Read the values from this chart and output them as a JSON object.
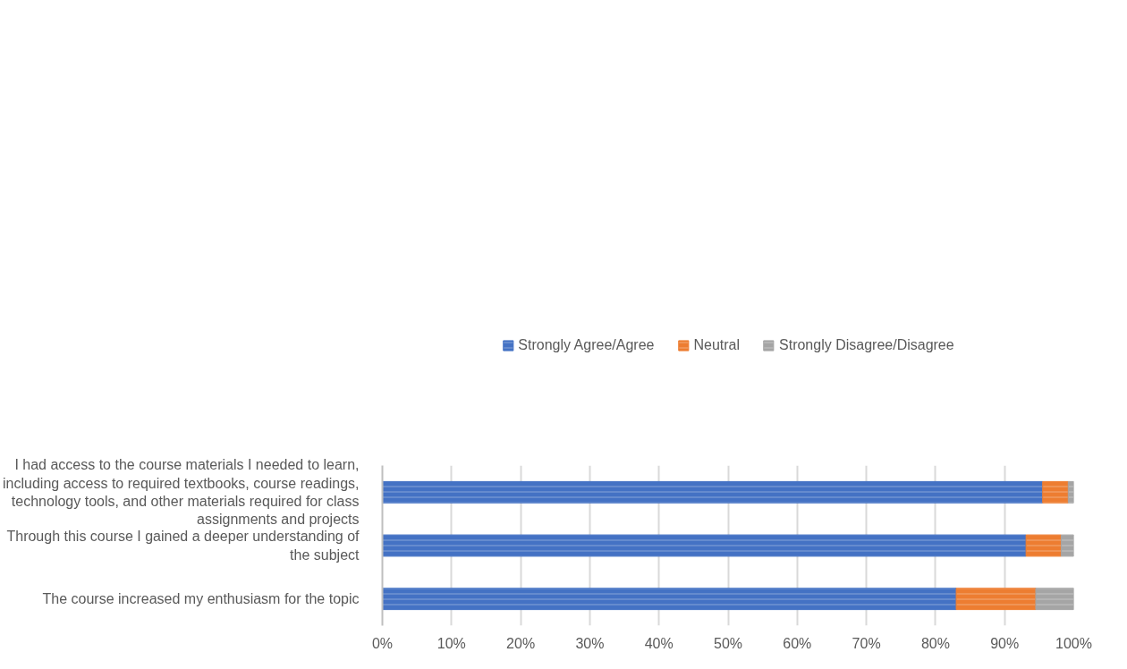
{
  "chart_data": {
    "type": "bar",
    "orientation": "horizontal",
    "stacked": true,
    "categories": [
      "I had access to the course materials I needed to learn, including access to required textbooks, course readings, technology tools, and other materials required for class assignments and projects",
      "Through this course I gained a deeper understanding of the subject",
      "The course increased my enthusiasm for the topic"
    ],
    "series": [
      {
        "name": "Strongly Agree/Agree",
        "color": "#4472c4",
        "values": [
          95.5,
          93.1,
          83.0
        ]
      },
      {
        "name": "Neutral",
        "color": "#ed7d31",
        "values": [
          3.7,
          5.1,
          11.5
        ]
      },
      {
        "name": "Strongly Disagree/Disagree",
        "color": "#a5a5a5",
        "values": [
          0.8,
          1.8,
          5.5
        ]
      }
    ],
    "xlim": [
      0,
      100
    ],
    "xticks": [
      {
        "value": 0,
        "label": "0%"
      },
      {
        "value": 10,
        "label": "10%"
      },
      {
        "value": 20,
        "label": "20%"
      },
      {
        "value": 30,
        "label": "30%"
      },
      {
        "value": 40,
        "label": "40%"
      },
      {
        "value": 50,
        "label": "50%"
      },
      {
        "value": 60,
        "label": "60%"
      },
      {
        "value": 70,
        "label": "70%"
      },
      {
        "value": 80,
        "label": "80%"
      },
      {
        "value": 90,
        "label": "90%"
      },
      {
        "value": 100,
        "label": "100%"
      }
    ],
    "grid": "x",
    "legend": "top"
  }
}
